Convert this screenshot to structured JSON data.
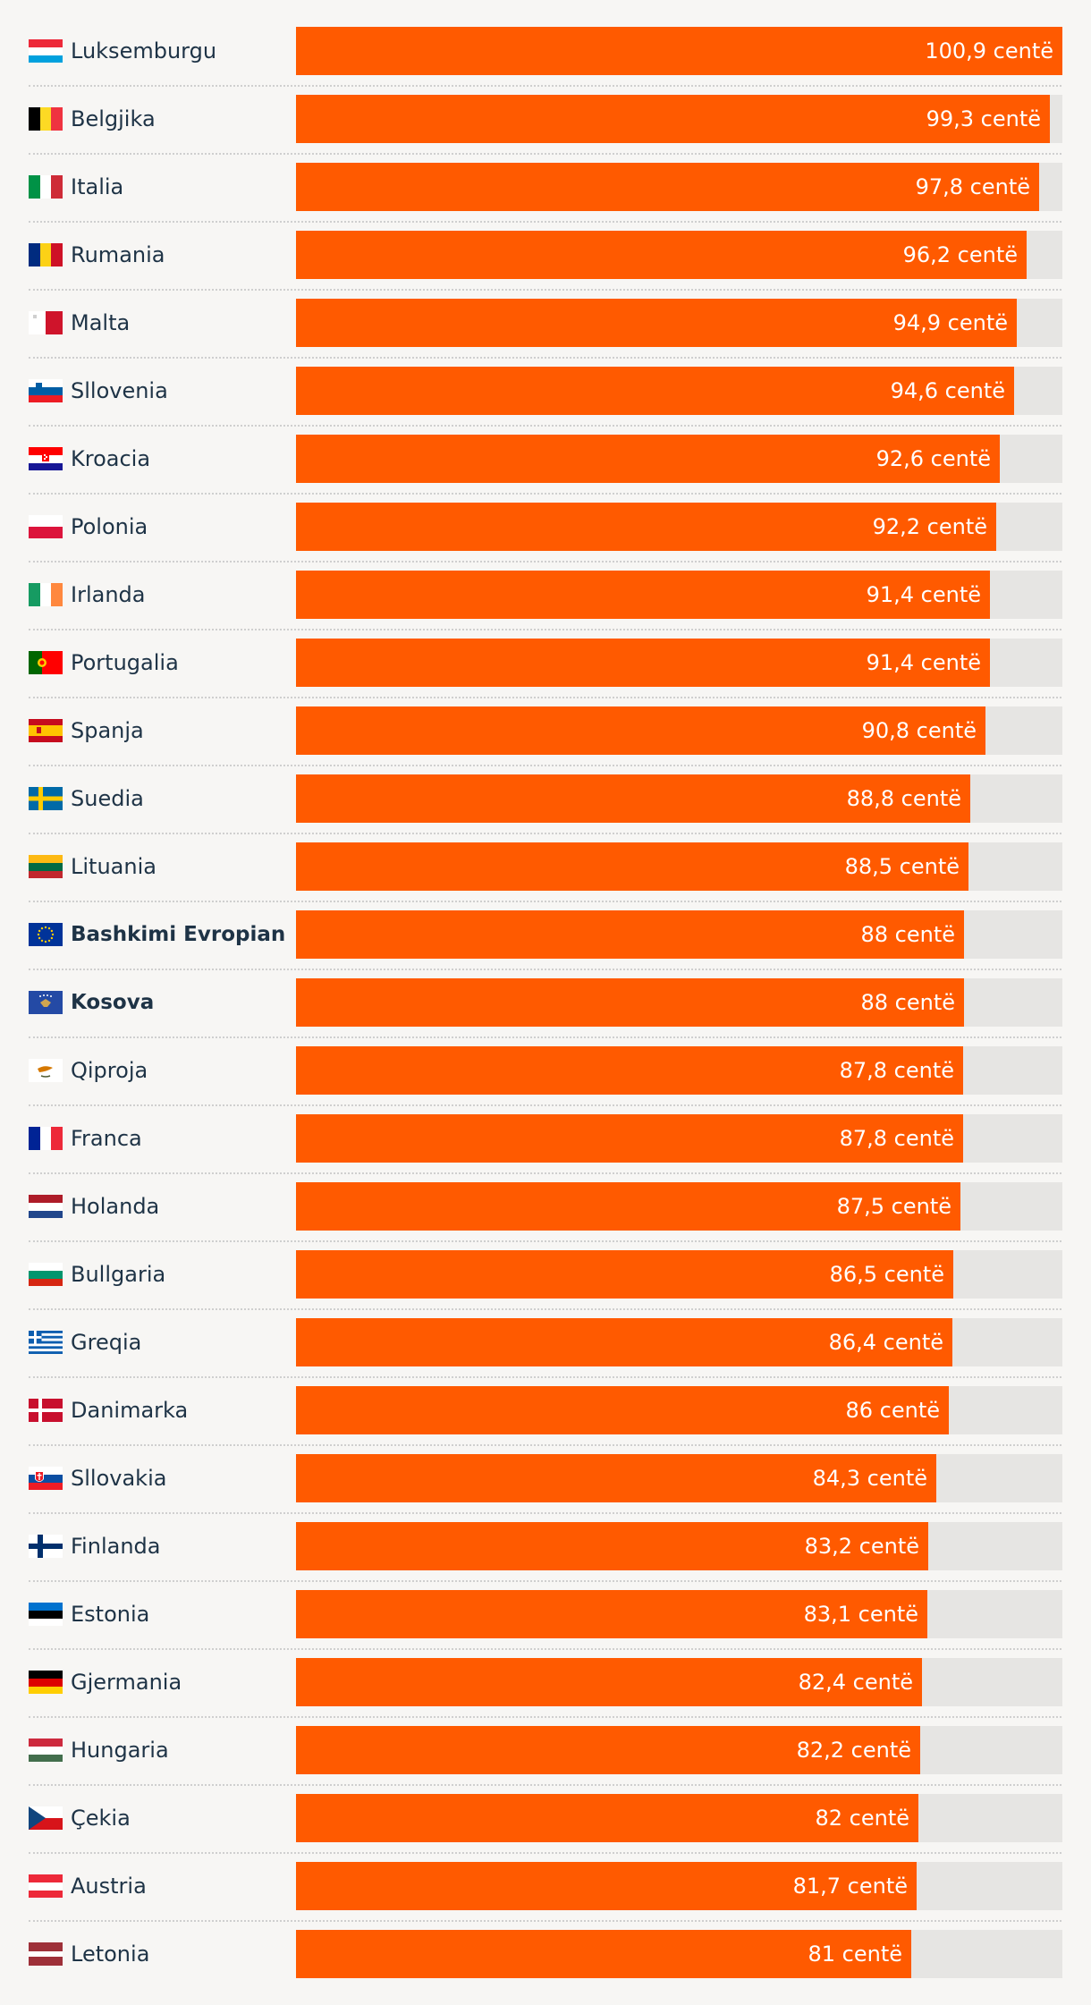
{
  "chart_data": {
    "type": "bar",
    "orientation": "horizontal",
    "xlim": [
      0,
      100.9
    ],
    "unit": "centë",
    "categories": [
      {
        "label": "Luksemburgu",
        "value": 100.9,
        "value_label": "100,9 centë",
        "flag": "luxembourg-flag",
        "bold": false
      },
      {
        "label": "Belgjika",
        "value": 99.3,
        "value_label": "99,3 centë",
        "flag": "belgium-flag",
        "bold": false
      },
      {
        "label": "Italia",
        "value": 97.8,
        "value_label": "97,8 centë",
        "flag": "italy-flag",
        "bold": false
      },
      {
        "label": "Rumania",
        "value": 96.2,
        "value_label": "96,2 centë",
        "flag": "romania-flag",
        "bold": false
      },
      {
        "label": "Malta",
        "value": 94.9,
        "value_label": "94,9 centë",
        "flag": "malta-flag",
        "bold": false
      },
      {
        "label": "Sllovenia",
        "value": 94.6,
        "value_label": "94,6 centë",
        "flag": "slovenia-flag",
        "bold": false
      },
      {
        "label": "Kroacia",
        "value": 92.6,
        "value_label": "92,6 centë",
        "flag": "croatia-flag",
        "bold": false
      },
      {
        "label": "Polonia",
        "value": 92.2,
        "value_label": "92,2 centë",
        "flag": "poland-flag",
        "bold": false
      },
      {
        "label": "Irlanda",
        "value": 91.4,
        "value_label": "91,4 centë",
        "flag": "ireland-flag",
        "bold": false
      },
      {
        "label": "Portugalia",
        "value": 91.4,
        "value_label": "91,4 centë",
        "flag": "portugal-flag",
        "bold": false
      },
      {
        "label": "Spanja",
        "value": 90.8,
        "value_label": "90,8 centë",
        "flag": "spain-flag",
        "bold": false
      },
      {
        "label": "Suedia",
        "value": 88.8,
        "value_label": "88,8 centë",
        "flag": "sweden-flag",
        "bold": false
      },
      {
        "label": "Lituania",
        "value": 88.5,
        "value_label": "88,5 centë",
        "flag": "lithuania-flag",
        "bold": false
      },
      {
        "label": "Bashkimi Evropian",
        "value": 88,
        "value_label": "88 centë",
        "flag": "eu-flag",
        "bold": true
      },
      {
        "label": "Kosova",
        "value": 88,
        "value_label": "88 centë",
        "flag": "kosovo-flag",
        "bold": true
      },
      {
        "label": "Qiproja",
        "value": 87.8,
        "value_label": "87,8 centë",
        "flag": "cyprus-flag",
        "bold": false
      },
      {
        "label": "Franca",
        "value": 87.8,
        "value_label": "87,8 centë",
        "flag": "france-flag",
        "bold": false
      },
      {
        "label": "Holanda",
        "value": 87.5,
        "value_label": "87,5 centë",
        "flag": "netherlands-flag",
        "bold": false
      },
      {
        "label": "Bullgaria",
        "value": 86.5,
        "value_label": "86,5 centë",
        "flag": "bulgaria-flag",
        "bold": false
      },
      {
        "label": "Greqia",
        "value": 86.4,
        "value_label": "86,4 centë",
        "flag": "greece-flag",
        "bold": false
      },
      {
        "label": "Danimarka",
        "value": 86,
        "value_label": "86 centë",
        "flag": "denmark-flag",
        "bold": false
      },
      {
        "label": "Sllovakia",
        "value": 84.3,
        "value_label": "84,3 centë",
        "flag": "slovakia-flag",
        "bold": false
      },
      {
        "label": "Finlanda",
        "value": 83.2,
        "value_label": "83,2 centë",
        "flag": "finland-flag",
        "bold": false
      },
      {
        "label": "Estonia",
        "value": 83.1,
        "value_label": "83,1 centë",
        "flag": "estonia-flag",
        "bold": false
      },
      {
        "label": "Gjermania",
        "value": 82.4,
        "value_label": "82,4 centë",
        "flag": "germany-flag",
        "bold": false
      },
      {
        "label": "Hungaria",
        "value": 82.2,
        "value_label": "82,2 centë",
        "flag": "hungary-flag",
        "bold": false
      },
      {
        "label": "Çekia",
        "value": 82,
        "value_label": "82 centë",
        "flag": "czechia-flag",
        "bold": false
      },
      {
        "label": "Austria",
        "value": 81.7,
        "value_label": "81,7 centë",
        "flag": "austria-flag",
        "bold": false
      },
      {
        "label": "Letonia",
        "value": 81,
        "value_label": "81 centë",
        "flag": "latvia-flag",
        "bold": false
      }
    ],
    "colors": {
      "bar": "#ff5a00",
      "track": "#e6e5e3",
      "value_text": "#ffffff",
      "label_text": "#1e3346",
      "background": "#f7f6f4"
    },
    "grid": false,
    "legend": "none"
  }
}
